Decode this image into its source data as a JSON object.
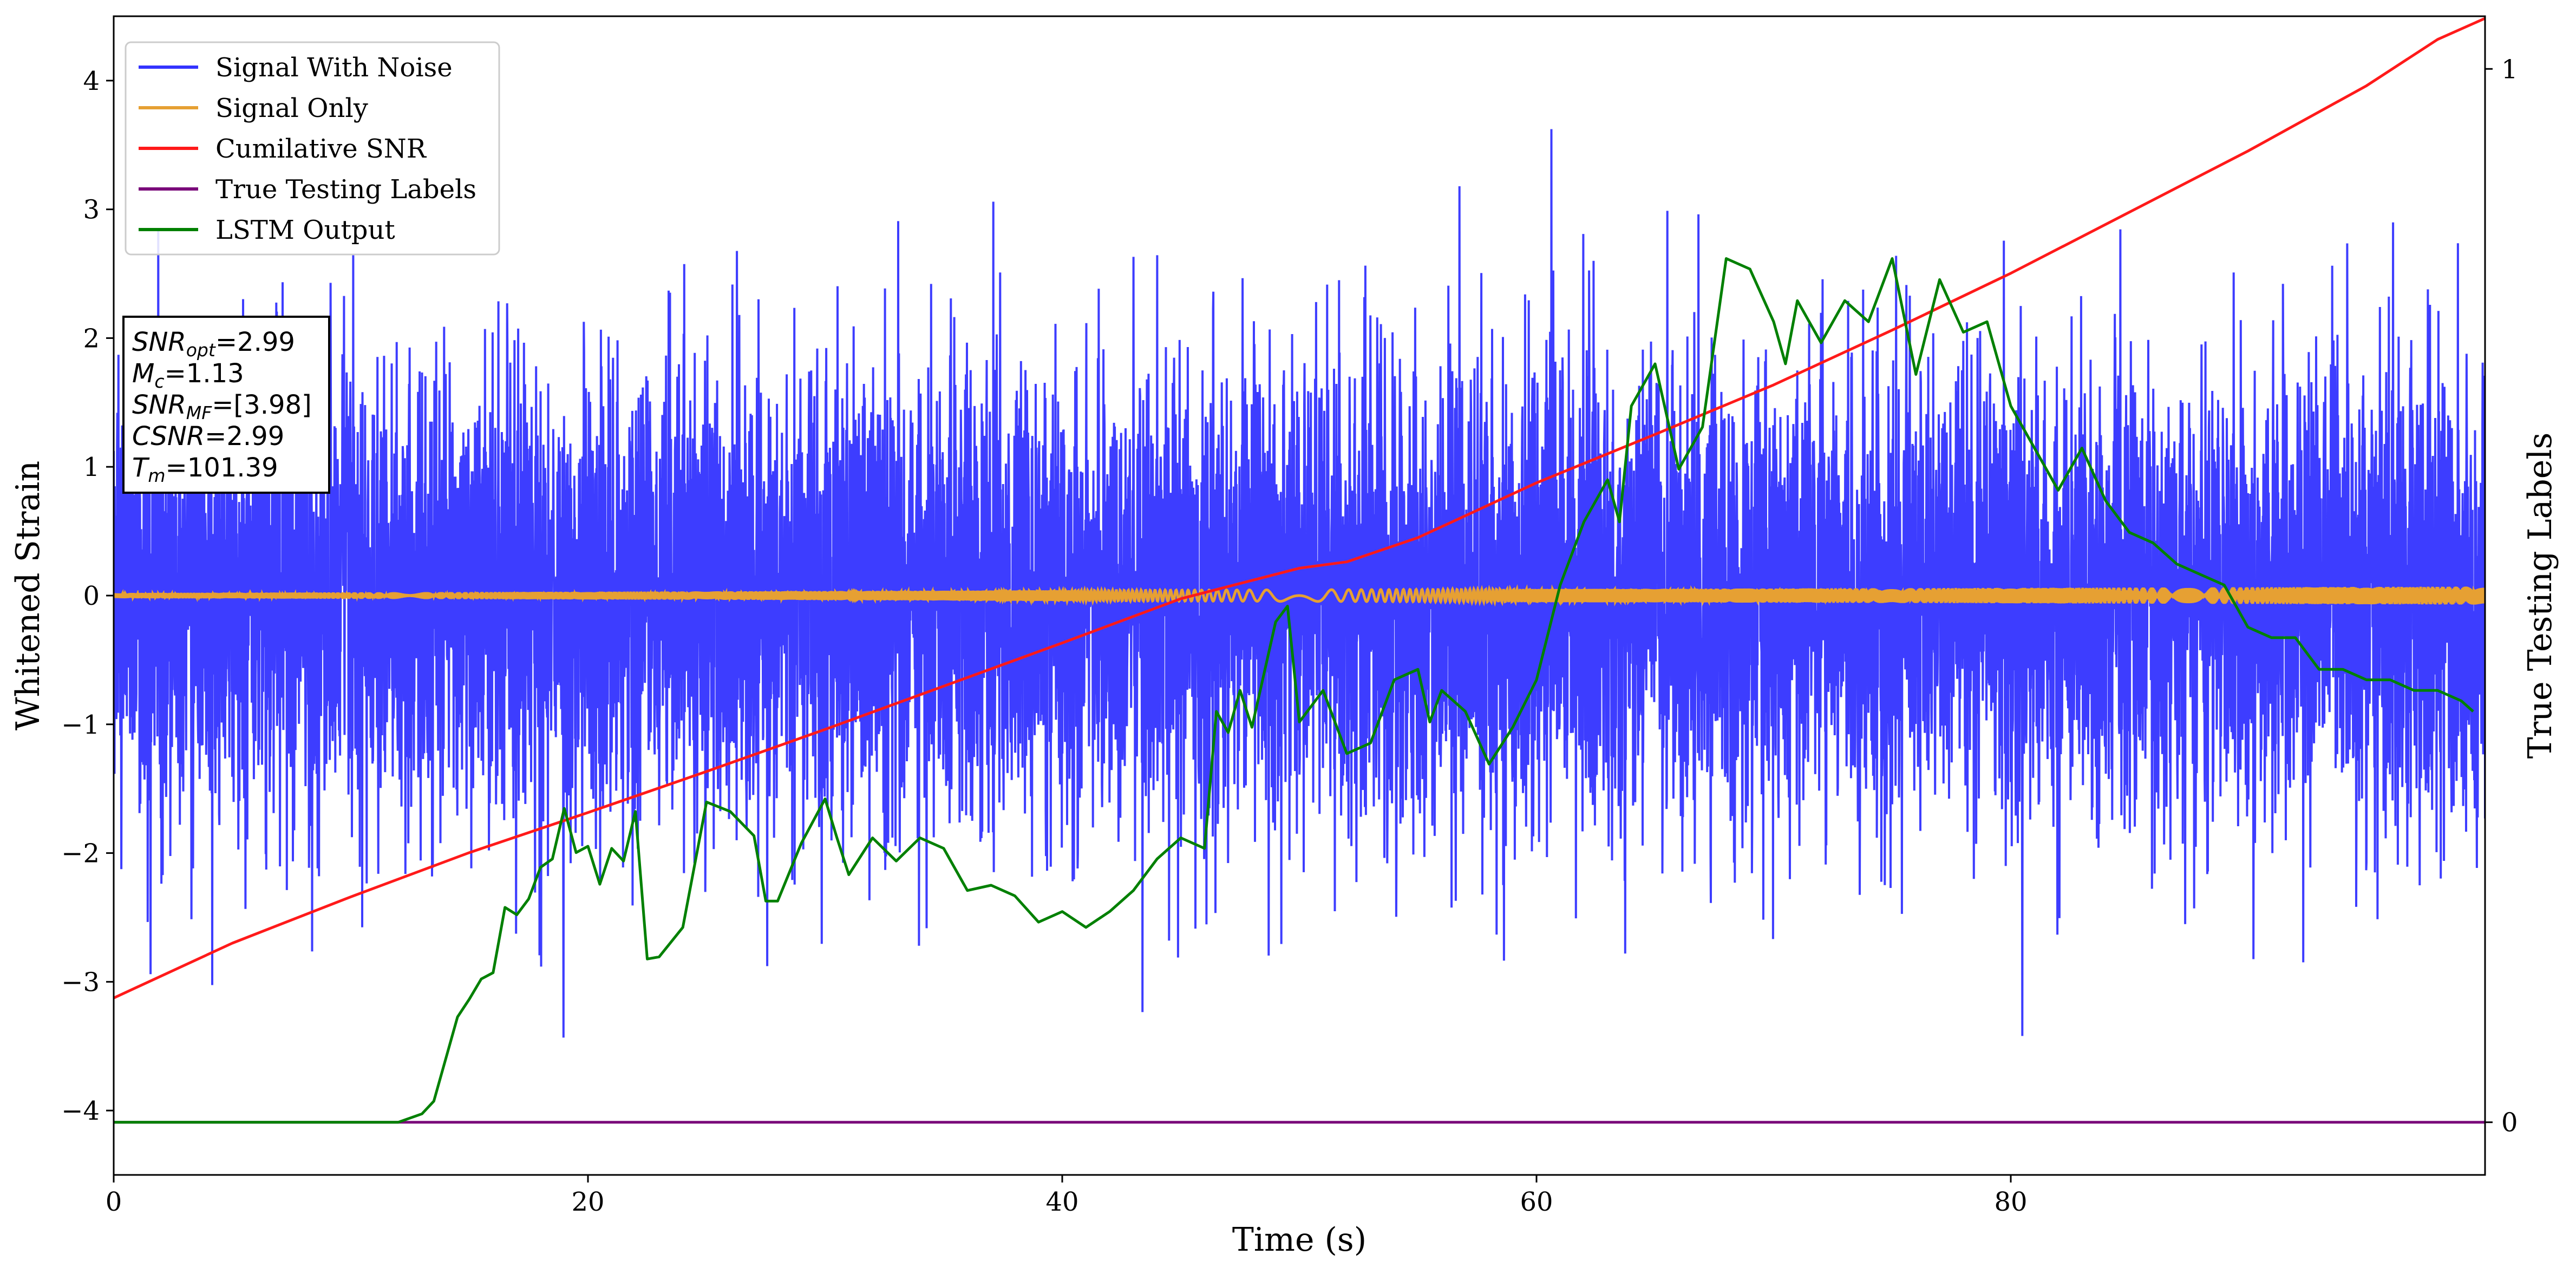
{
  "chart_data": {
    "type": "line",
    "xlabel": "Time (s)",
    "ylabel_left": "Whitened Strain",
    "ylabel_right": "True Testing Labels",
    "xlim": [
      0,
      100
    ],
    "ylim_left": [
      -4.5,
      4.5
    ],
    "ylim_right": [
      -0.05,
      1.05
    ],
    "x_ticks": [
      0,
      20,
      40,
      60,
      80
    ],
    "y_ticks_left": [
      -4,
      -3,
      -2,
      -1,
      0,
      1,
      2,
      3,
      4
    ],
    "y_ticks_right": [
      0,
      1
    ],
    "legend_placement": "top-left",
    "grid": false,
    "series": [
      {
        "name": "Signal With Noise",
        "color": "#3333ff",
        "axis": "left",
        "kind": "noise",
        "amplitude_std": 0.9,
        "x_range": [
          0,
          100
        ]
      },
      {
        "name": "Signal Only",
        "color": "#e6a033",
        "axis": "left",
        "kind": "chirp",
        "amplitude": [
          0.02,
          0.07
        ],
        "x_range": [
          0,
          100
        ]
      },
      {
        "name": "Cumilative SNR",
        "color": "#ff1a1a",
        "axis": "right",
        "x": [
          0,
          5,
          10,
          15,
          20,
          25,
          30,
          35,
          40,
          45,
          50,
          52,
          55,
          60,
          65,
          70,
          75,
          80,
          85,
          90,
          95,
          98,
          100
        ],
        "y": [
          0.118,
          0.17,
          0.214,
          0.256,
          0.294,
          0.333,
          0.373,
          0.414,
          0.455,
          0.497,
          0.526,
          0.532,
          0.555,
          0.607,
          0.653,
          0.7,
          0.752,
          0.806,
          0.864,
          0.922,
          0.984,
          1.028,
          1.048
        ]
      },
      {
        "name": "True Testing Labels",
        "color": "#7a0a7a",
        "axis": "right",
        "x": [
          0,
          100
        ],
        "y": [
          0,
          0
        ]
      },
      {
        "name": "LSTM Output",
        "color": "#008000",
        "axis": "right",
        "x": [
          0,
          12,
          13,
          13.5,
          14,
          14.5,
          15,
          15.5,
          16,
          16.5,
          17,
          17.5,
          18,
          18.5,
          19,
          19.5,
          20,
          20.5,
          21,
          21.5,
          22,
          22.5,
          23,
          24,
          25,
          26,
          27,
          27.5,
          28,
          29,
          30,
          30.5,
          31,
          32,
          33,
          34,
          35,
          36,
          37,
          38,
          39,
          40,
          41,
          42,
          43,
          44,
          45,
          46,
          46.5,
          47,
          47.5,
          48,
          49,
          49.5,
          50,
          51,
          52,
          53,
          54,
          55,
          55.5,
          56,
          57,
          58,
          59,
          60,
          61,
          62,
          63,
          63.5,
          64,
          65,
          66,
          67,
          68,
          69,
          70,
          70.5,
          71,
          72,
          73,
          74,
          75,
          76,
          77,
          78,
          79,
          80,
          81,
          82,
          83,
          84,
          85,
          86,
          87,
          88,
          89,
          90,
          91,
          92,
          93,
          94,
          95,
          96,
          97,
          98,
          99,
          99.5
        ],
        "y": [
          0,
          0,
          0.008,
          0.02,
          0.06,
          0.1,
          0.117,
          0.136,
          0.142,
          0.204,
          0.197,
          0.212,
          0.242,
          0.25,
          0.298,
          0.256,
          0.262,
          0.226,
          0.26,
          0.248,
          0.295,
          0.155,
          0.157,
          0.185,
          0.304,
          0.295,
          0.272,
          0.21,
          0.21,
          0.265,
          0.307,
          0.27,
          0.235,
          0.27,
          0.248,
          0.27,
          0.26,
          0.22,
          0.225,
          0.215,
          0.19,
          0.2,
          0.185,
          0.2,
          0.22,
          0.25,
          0.27,
          0.26,
          0.39,
          0.37,
          0.41,
          0.375,
          0.475,
          0.49,
          0.38,
          0.41,
          0.35,
          0.36,
          0.42,
          0.43,
          0.38,
          0.41,
          0.39,
          0.34,
          0.375,
          0.42,
          0.51,
          0.57,
          0.61,
          0.57,
          0.68,
          0.72,
          0.62,
          0.66,
          0.82,
          0.81,
          0.76,
          0.72,
          0.78,
          0.74,
          0.78,
          0.76,
          0.82,
          0.71,
          0.8,
          0.75,
          0.76,
          0.68,
          0.64,
          0.6,
          0.64,
          0.59,
          0.56,
          0.55,
          0.53,
          0.52,
          0.51,
          0.47,
          0.46,
          0.46,
          0.43,
          0.43,
          0.42,
          0.42,
          0.41,
          0.41,
          0.4,
          0.39
        ]
      }
    ],
    "annotation": {
      "lines": [
        {
          "sym": "SNR",
          "sub": "opt",
          "value": "=2.99"
        },
        {
          "sym": "M",
          "sub": "c",
          "value": "=1.13"
        },
        {
          "sym": "SNR",
          "sub": "MF",
          "value": "=[3.98]"
        },
        {
          "sym": "CSNR",
          "sub": "",
          "value": "=2.99"
        },
        {
          "sym": "T",
          "sub": "m",
          "value": "=101.39"
        }
      ]
    }
  }
}
